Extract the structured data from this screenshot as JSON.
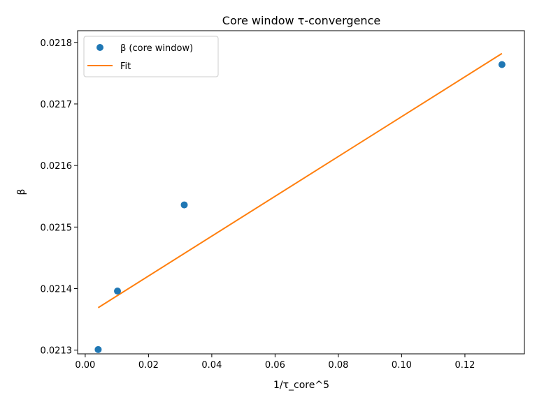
{
  "chart_data": {
    "type": "scatter",
    "title": "Core window τ-convergence",
    "xlabel": "1/τ_core^5",
    "ylabel": "β",
    "xlim": [
      -0.0024,
      0.1388
    ],
    "ylim": [
      0.021294,
      0.021819
    ],
    "xticks": [
      0.0,
      0.02,
      0.04,
      0.06,
      0.08,
      0.1,
      0.12
    ],
    "xtick_labels": [
      "0.00",
      "0.02",
      "0.04",
      "0.06",
      "0.08",
      "0.10",
      "0.12"
    ],
    "yticks": [
      0.0213,
      0.0214,
      0.0215,
      0.0216,
      0.0217,
      0.0218
    ],
    "ytick_labels": [
      "0.0213",
      "0.0214",
      "0.0215",
      "0.0216",
      "0.0217",
      "0.0218"
    ],
    "grid": false,
    "legend_position": "top-left",
    "series": [
      {
        "name": "β (core window)",
        "kind": "scatter",
        "color": "#1f77b4",
        "x": [
          0.0041,
          0.0102,
          0.0313,
          0.1317
        ],
        "y": [
          0.021301,
          0.021396,
          0.021536,
          0.021764
        ]
      },
      {
        "name": "Fit",
        "kind": "line",
        "color": "#ff7f0e",
        "x": [
          0.0041,
          0.1317
        ],
        "y": [
          0.021369,
          0.021782
        ]
      }
    ]
  }
}
